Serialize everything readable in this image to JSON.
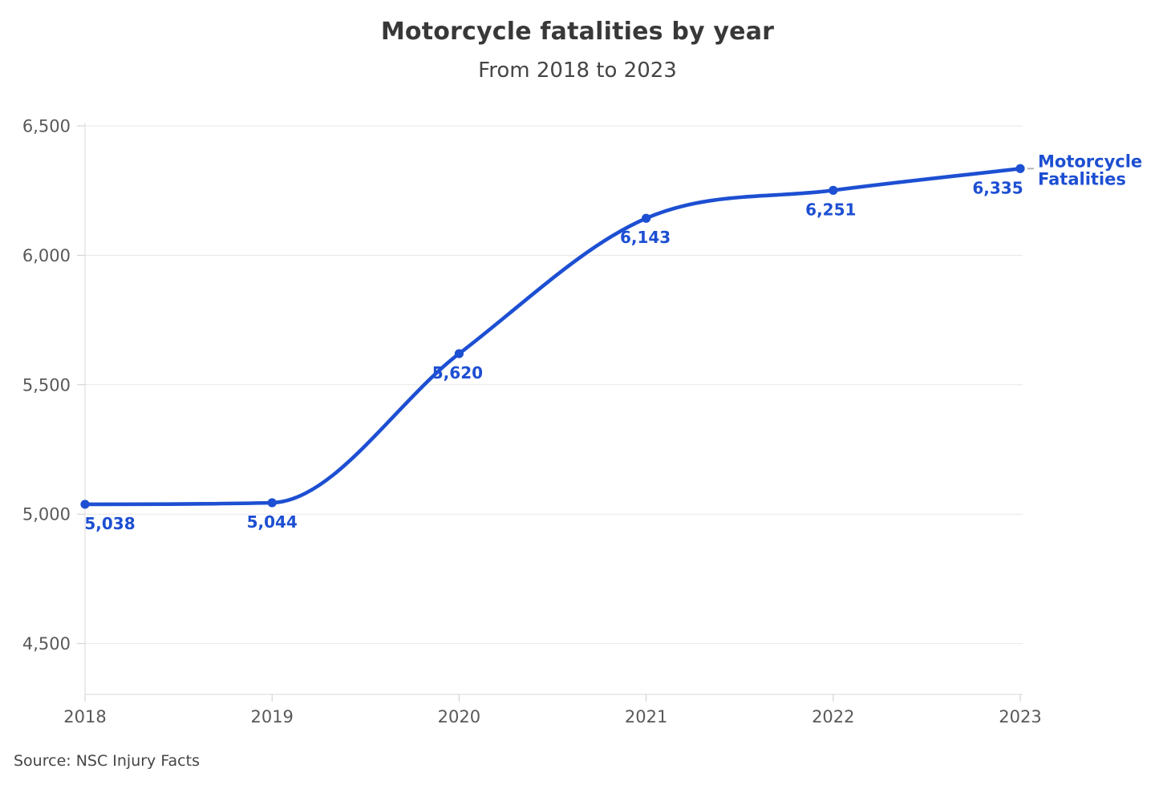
{
  "chart_data": {
    "type": "line",
    "title": "Motorcycle fatalities by year",
    "subtitle": "From 2018 to 2023",
    "categories": [
      "2018",
      "2019",
      "2020",
      "2021",
      "2022",
      "2023"
    ],
    "series": [
      {
        "name": "Motorcycle Fatalities",
        "values": [
          5038,
          5044,
          5620,
          6143,
          6251,
          6335
        ],
        "value_labels": [
          "5,038",
          "5,044",
          "5,620",
          "6,143",
          "6,251",
          "6,335"
        ]
      }
    ],
    "y_axis": {
      "tick_labels": [
        "4,500",
        "5,000",
        "5,500",
        "6,000",
        "6,500"
      ],
      "tick_values": [
        4500,
        5000,
        5500,
        6000,
        6500
      ],
      "range_top": 6500
    },
    "xlabel": "",
    "ylabel": "",
    "grid": "horizontal",
    "legend": {
      "position": "end-of-line",
      "label": "Motorcycle Fatalities",
      "lines": [
        "Motorcycle",
        "Fatalities"
      ]
    },
    "colors": {
      "line": "#1d4fd2",
      "marker": "#1d4fd2",
      "data_label": "#1d4fd2",
      "series_label": "#1d4fd2",
      "grid": "#e7e7e7",
      "axis_line": "#d9d9d9",
      "tick": "#cdcdcd",
      "axis_text": "#595959",
      "leader": "#b5b5b5"
    }
  },
  "footer": {
    "source": "Source: NSC Injury Facts"
  }
}
